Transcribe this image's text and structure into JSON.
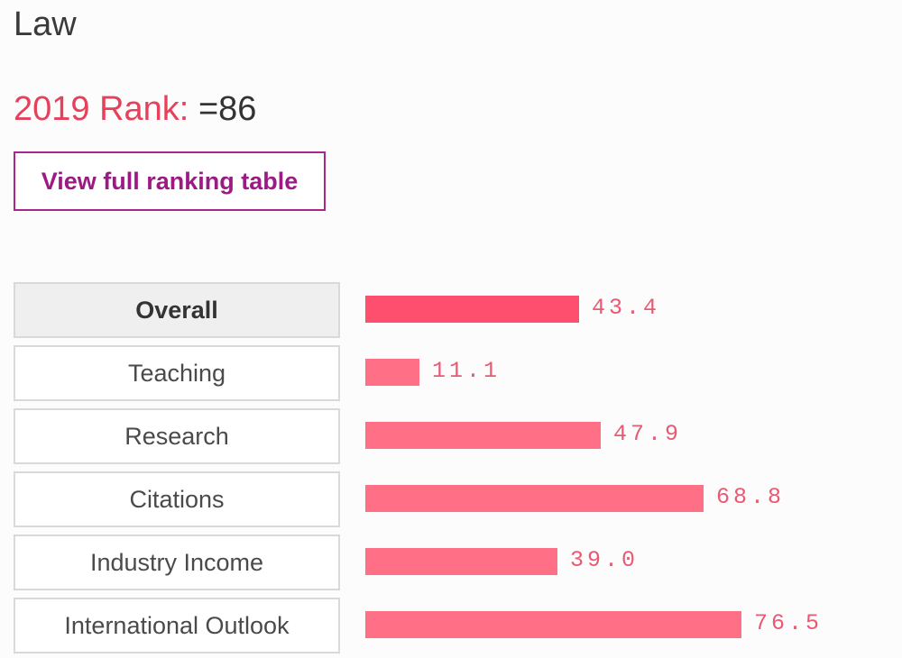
{
  "subject": {
    "title": "Law"
  },
  "rank": {
    "label": "2019 Rank:",
    "value": "=86"
  },
  "view_button": {
    "label": "View full ranking table"
  },
  "colors": {
    "rank_label": "#e6415a",
    "button_accent": "#9b1a83",
    "bar_overall": "#ff4f6e",
    "bar_default": "#ff6f86",
    "value_text": "#e85a72"
  },
  "metrics": [
    {
      "label": "Overall",
      "score": "43.4",
      "active": true
    },
    {
      "label": "Teaching",
      "score": "11.1",
      "active": false
    },
    {
      "label": "Research",
      "score": "47.9",
      "active": false
    },
    {
      "label": "Citations",
      "score": "68.8",
      "active": false
    },
    {
      "label": "Industry Income",
      "score": "39.0",
      "active": false
    },
    {
      "label": "International Outlook",
      "score": "76.5",
      "active": false
    }
  ],
  "chart_data": {
    "type": "bar",
    "orientation": "horizontal",
    "categories": [
      "Overall",
      "Teaching",
      "Research",
      "Citations",
      "Industry Income",
      "International Outlook"
    ],
    "values": [
      43.4,
      11.1,
      47.9,
      68.8,
      39.0,
      76.5
    ],
    "title": "",
    "xlabel": "",
    "ylabel": "",
    "xlim": [
      0,
      100
    ],
    "grid": false
  }
}
